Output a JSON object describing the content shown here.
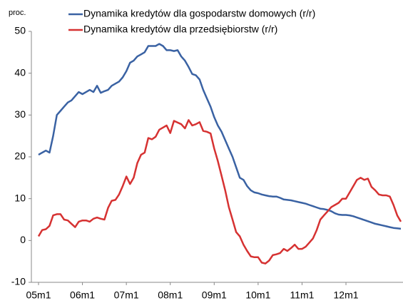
{
  "chart_data": {
    "type": "line",
    "y_label": "proc.",
    "categories": [
      "05m1",
      null,
      null,
      null,
      null,
      null,
      null,
      null,
      null,
      null,
      null,
      null,
      "06m1",
      null,
      null,
      null,
      null,
      null,
      null,
      null,
      null,
      null,
      null,
      null,
      "07m1",
      null,
      null,
      null,
      null,
      null,
      null,
      null,
      null,
      null,
      null,
      null,
      "08m1",
      null,
      null,
      null,
      null,
      null,
      null,
      null,
      null,
      null,
      null,
      null,
      "09m1",
      null,
      null,
      null,
      null,
      null,
      null,
      null,
      null,
      null,
      null,
      null,
      "10m1",
      null,
      null,
      null,
      null,
      null,
      null,
      null,
      null,
      null,
      null,
      null,
      "11m1",
      null,
      null,
      null,
      null,
      null,
      null,
      null,
      null,
      null,
      null,
      null,
      "12m1",
      null,
      null,
      null,
      null,
      null,
      null,
      null,
      null,
      null,
      null,
      null,
      null,
      null,
      null,
      null
    ],
    "series": [
      {
        "name": "Dynamika kredytów dla gospodarstw domowych (r/r)",
        "color": "#3a62a3",
        "values": [
          20.5,
          21,
          21.5,
          21,
          25,
          30,
          31,
          32,
          33,
          33.5,
          34.5,
          35.5,
          35,
          35.5,
          36,
          35.5,
          37,
          35.3,
          35.7,
          36,
          37,
          37.5,
          38,
          39,
          40.5,
          42.5,
          43,
          44,
          44.5,
          45,
          46.5,
          46.5,
          46.5,
          47,
          46.5,
          45.5,
          45.5,
          45.3,
          45.5,
          44,
          43,
          41.5,
          39.8,
          39.5,
          38.5,
          36,
          34,
          32,
          29.5,
          27.5,
          26,
          24,
          22,
          20,
          17.5,
          15,
          14.5,
          13,
          12,
          11.5,
          11.3,
          11,
          10.8,
          10.6,
          10.5,
          10.5,
          10.2,
          9.8,
          9.7,
          9.6,
          9.4,
          9.2,
          9,
          8.8,
          8.5,
          8.2,
          7.9,
          7.6,
          7.5,
          7.3,
          7,
          6.5,
          6.2,
          6.1,
          6.1,
          6,
          5.8,
          5.5,
          5.2,
          4.9,
          4.6,
          4.3,
          4,
          3.8,
          3.6,
          3.4,
          3.2,
          3,
          2.9,
          2.8
        ]
      },
      {
        "name": "Dynamika kredytów dla przedsiębiorstw (r/r)",
        "color": "#d63232",
        "values": [
          1,
          2.5,
          2.7,
          3.5,
          6,
          6.3,
          6.3,
          5,
          4.8,
          4,
          3.2,
          4.5,
          4.8,
          4.8,
          4.5,
          5.2,
          5.5,
          5.2,
          5,
          7.8,
          9.5,
          9.7,
          11,
          13,
          15.3,
          13.5,
          15,
          18.5,
          20.5,
          21,
          24.5,
          24.2,
          24.8,
          26.5,
          27,
          27.5,
          25.7,
          28.6,
          28.2,
          27.8,
          26.8,
          28.8,
          27.5,
          27.8,
          28.3,
          26.2,
          26,
          25.6,
          22,
          19,
          15.5,
          12,
          8,
          5,
          2,
          1,
          -1,
          -2.5,
          -3.8,
          -4,
          -4,
          -5.3,
          -5.5,
          -4.8,
          -3.5,
          -3.3,
          -3,
          -2,
          -2.5,
          -1.8,
          -1,
          -2,
          -2,
          -1.5,
          -0.5,
          0.5,
          2.5,
          5,
          6,
          7,
          8,
          8.5,
          9,
          10,
          10,
          11.5,
          13,
          14.5,
          15,
          14.5,
          14.8,
          12.8,
          12,
          11,
          10.8,
          10.8,
          10.5,
          8.5,
          6,
          4.5
        ]
      }
    ],
    "ylim": [
      -10,
      50
    ],
    "yticks": [
      -10,
      0,
      10,
      20,
      30,
      40,
      50
    ],
    "grid": false,
    "legend": "top"
  }
}
